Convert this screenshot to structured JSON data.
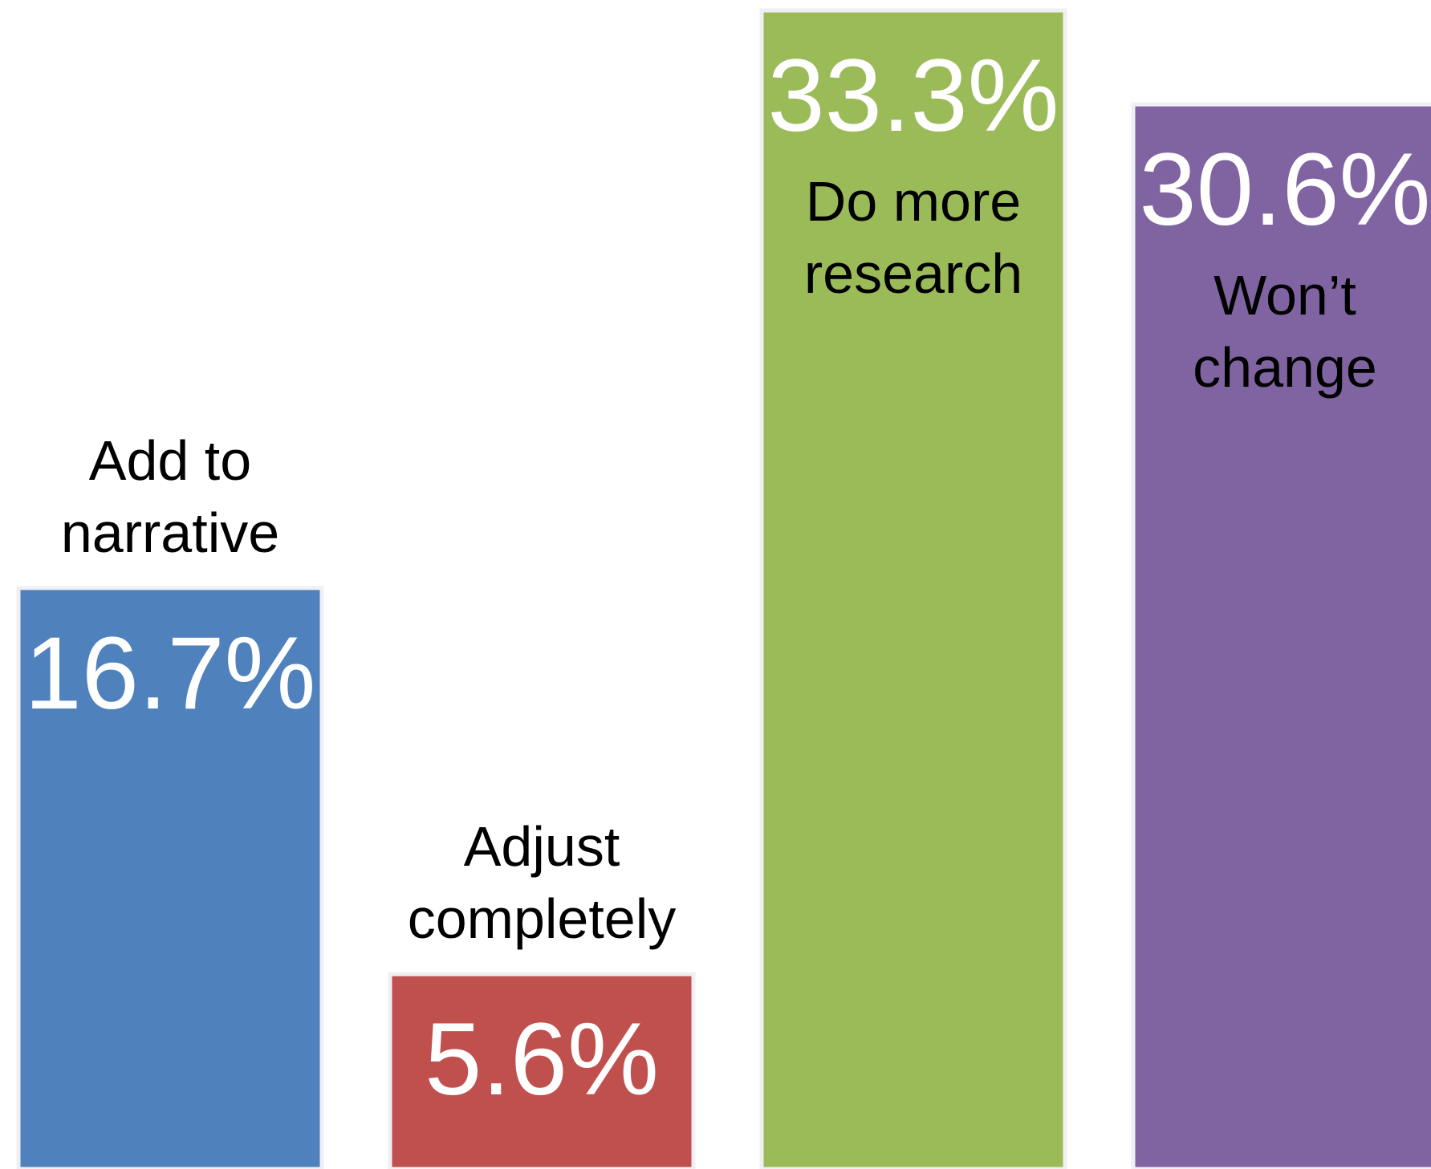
{
  "chart_data": {
    "type": "bar",
    "categories": [
      "Add to narrative",
      "Adjust completely",
      "Do more research",
      "Won’t change"
    ],
    "values": [
      16.7,
      5.6,
      33.3,
      30.6
    ],
    "value_labels": [
      "16.7%",
      "5.6%",
      "33.3%",
      "30.6%"
    ],
    "colors": [
      "#4f81bd",
      "#c0504d",
      "#9bbb59",
      "#8064a2"
    ],
    "ylim": [
      0,
      33.6
    ]
  }
}
